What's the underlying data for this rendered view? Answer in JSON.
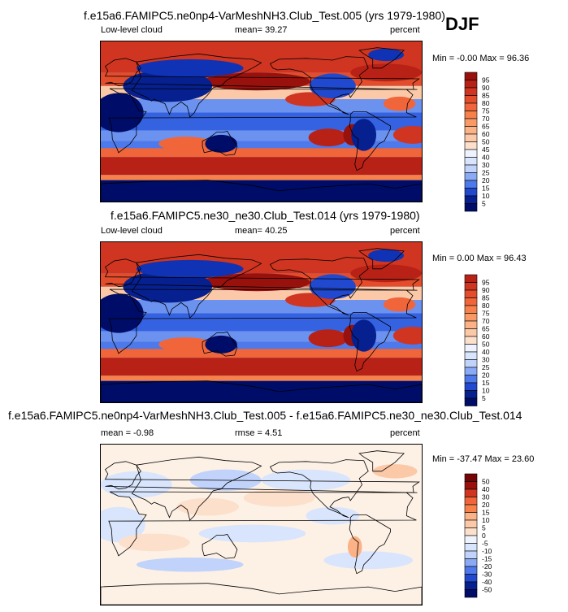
{
  "season": "DJF",
  "colors": {
    "warm": [
      "#fdf1e6",
      "#fde0cc",
      "#fcc9a8",
      "#fbb286",
      "#f99a66",
      "#f6814b",
      "#f0663a",
      "#e34d2c",
      "#cf3520",
      "#b82115",
      "#98110d",
      "#750406"
    ],
    "cool": [
      "#eef3ff",
      "#d9e5fd",
      "#c1d3fb",
      "#a7c0f8",
      "#8aaaf5",
      "#6c92f0",
      "#4e79ea",
      "#3562e0",
      "#2049cf",
      "#1033b5",
      "#06208f",
      "#000d68"
    ],
    "land_outline": "#000000",
    "polar_fill": "#000d68"
  },
  "chart_data": [
    {
      "type": "heatmap",
      "title": "f.e15a6.FAMIPC5.ne0np4-VarMeshNH3.Club_Test.005 (yrs 1979-1980)",
      "variable": "Low-level cloud",
      "stat_left": "mean=  39.27",
      "units": "percent",
      "range_text": "Min = -0.00 Max =  96.36",
      "mean": 39.27,
      "min": -0.0,
      "max": 96.36,
      "colorbar_levels": [
        "95",
        "90",
        "85",
        "80",
        "75",
        "70",
        "65",
        "60",
        "50",
        "45",
        "40",
        "30",
        "25",
        "20",
        "15",
        "10",
        "5"
      ]
    },
    {
      "type": "heatmap",
      "title": "f.e15a6.FAMIPC5.ne30_ne30.Club_Test.014 (yrs 1979-1980)",
      "variable": "Low-level cloud",
      "stat_left": "mean=  40.25",
      "units": "percent",
      "range_text": "Min =  0.00 Max =  96.43",
      "mean": 40.25,
      "min": 0.0,
      "max": 96.43,
      "colorbar_levels": [
        "95",
        "90",
        "85",
        "80",
        "75",
        "70",
        "65",
        "60",
        "50",
        "40",
        "30",
        "25",
        "20",
        "15",
        "10",
        "5"
      ]
    },
    {
      "type": "heatmap",
      "title": "f.e15a6.FAMIPC5.ne0np4-VarMeshNH3.Club_Test.005 - f.e15a6.FAMIPC5.ne30_ne30.Club_Test.014",
      "variable": "mean =  -0.98",
      "stat_left": "rmse =   4.51",
      "units": "percent",
      "range_text": "Min = -37.47 Max =  23.60",
      "mean": -0.98,
      "rmse": 4.51,
      "min": -37.47,
      "max": 23.6,
      "colorbar_levels": [
        "50",
        "40",
        "30",
        "20",
        "15",
        "10",
        "5",
        "0",
        "-5",
        "-10",
        "-15",
        "-20",
        "-30",
        "-40",
        "-50"
      ]
    }
  ]
}
